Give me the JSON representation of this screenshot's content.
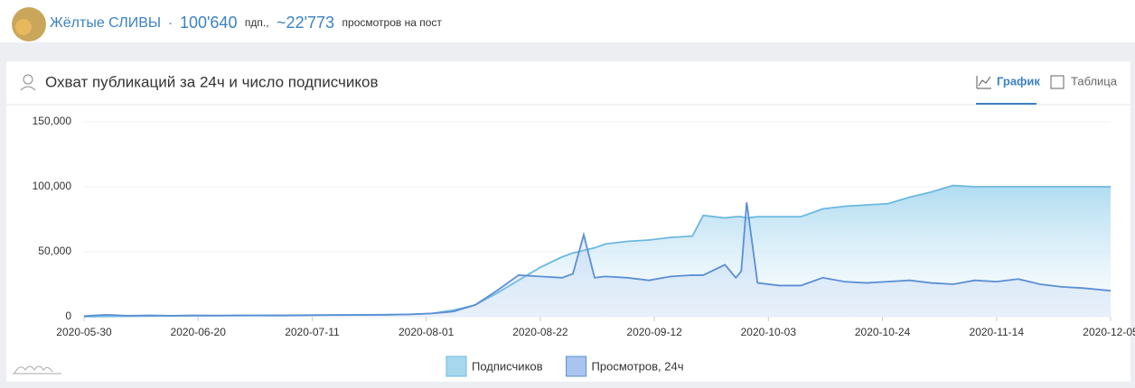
{
  "header": {
    "channel": "Жёлтые СЛИВЫ",
    "separator": "-",
    "subscribers": "100'640",
    "subscribers_unit": "пдп.,",
    "views": "~22'773",
    "views_unit": "просмотров на пост"
  },
  "card": {
    "title": "Охват публикаций за 24ч и число подписчиков",
    "tabs": [
      "График",
      "Таблица"
    ]
  },
  "chart_data": {
    "type": "area-line",
    "x": [
      "2020-05-30",
      "2020-06-03",
      "2020-06-07",
      "2020-06-11",
      "2020-06-15",
      "2020-06-19",
      "2020-06-23",
      "2020-06-27",
      "2020-07-01",
      "2020-07-05",
      "2020-07-09",
      "2020-07-13",
      "2020-07-17",
      "2020-07-21",
      "2020-07-25",
      "2020-07-29",
      "2020-08-02",
      "2020-08-06",
      "2020-08-10",
      "2020-08-14",
      "2020-08-18",
      "2020-08-22",
      "2020-08-26",
      "2020-08-28",
      "2020-08-30",
      "2020-09-01",
      "2020-09-03",
      "2020-09-07",
      "2020-09-11",
      "2020-09-15",
      "2020-09-19",
      "2020-09-21",
      "2020-09-25",
      "2020-09-27",
      "2020-09-28",
      "2020-09-29",
      "2020-10-01",
      "2020-10-05",
      "2020-10-09",
      "2020-10-13",
      "2020-10-17",
      "2020-10-21",
      "2020-10-25",
      "2020-10-29",
      "2020-11-02",
      "2020-11-06",
      "2020-11-10",
      "2020-11-14",
      "2020-11-18",
      "2020-11-22",
      "2020-11-26",
      "2020-11-30",
      "2020-12-05"
    ],
    "series": [
      {
        "name": "Подписчиков",
        "color": "#6bb8e0",
        "values": [
          0,
          200,
          400,
          500,
          600,
          700,
          800,
          900,
          1000,
          1100,
          1200,
          1300,
          1400,
          1500,
          1600,
          1800,
          2500,
          5000,
          9000,
          18000,
          28000,
          38000,
          46000,
          49000,
          51000,
          53000,
          56000,
          58000,
          59000,
          61000,
          62000,
          78000,
          76000,
          77000,
          77000,
          76000,
          77000,
          77000,
          77000,
          83000,
          85000,
          86000,
          87000,
          92000,
          96000,
          101000,
          100000,
          100000,
          100000,
          100000,
          100000,
          100000,
          100000
        ]
      },
      {
        "name": "Просмотров, 24ч",
        "color": "#5b8fd4",
        "values": [
          500,
          1500,
          800,
          1000,
          800,
          1000,
          900,
          1000,
          1000,
          900,
          1100,
          1200,
          1300,
          1400,
          1500,
          1800,
          2500,
          4000,
          9000,
          20000,
          32000,
          31000,
          30000,
          33000,
          63000,
          30000,
          31000,
          30000,
          28000,
          31000,
          32000,
          32000,
          40000,
          30000,
          35000,
          88000,
          26000,
          24000,
          24000,
          30000,
          27000,
          26000,
          27000,
          28000,
          26000,
          25000,
          28000,
          27000,
          29000,
          25000,
          23000,
          22000,
          20000
        ]
      }
    ],
    "xlim": [
      "2020-05-30",
      "2020-12-05"
    ],
    "xticks": [
      "2020-05-30",
      "2020-06-20",
      "2020-07-11",
      "2020-08-01",
      "2020-08-22",
      "2020-09-12",
      "2020-10-03",
      "2020-10-24",
      "2020-11-14",
      "2020-12-05"
    ],
    "ylim": [
      0,
      150000
    ],
    "yticks": [
      0,
      {
        "value": 50000,
        "label": "50,000"
      },
      {
        "value": 100000,
        "label": "100,000"
      },
      {
        "value": 150000,
        "label": "150,000"
      }
    ]
  }
}
